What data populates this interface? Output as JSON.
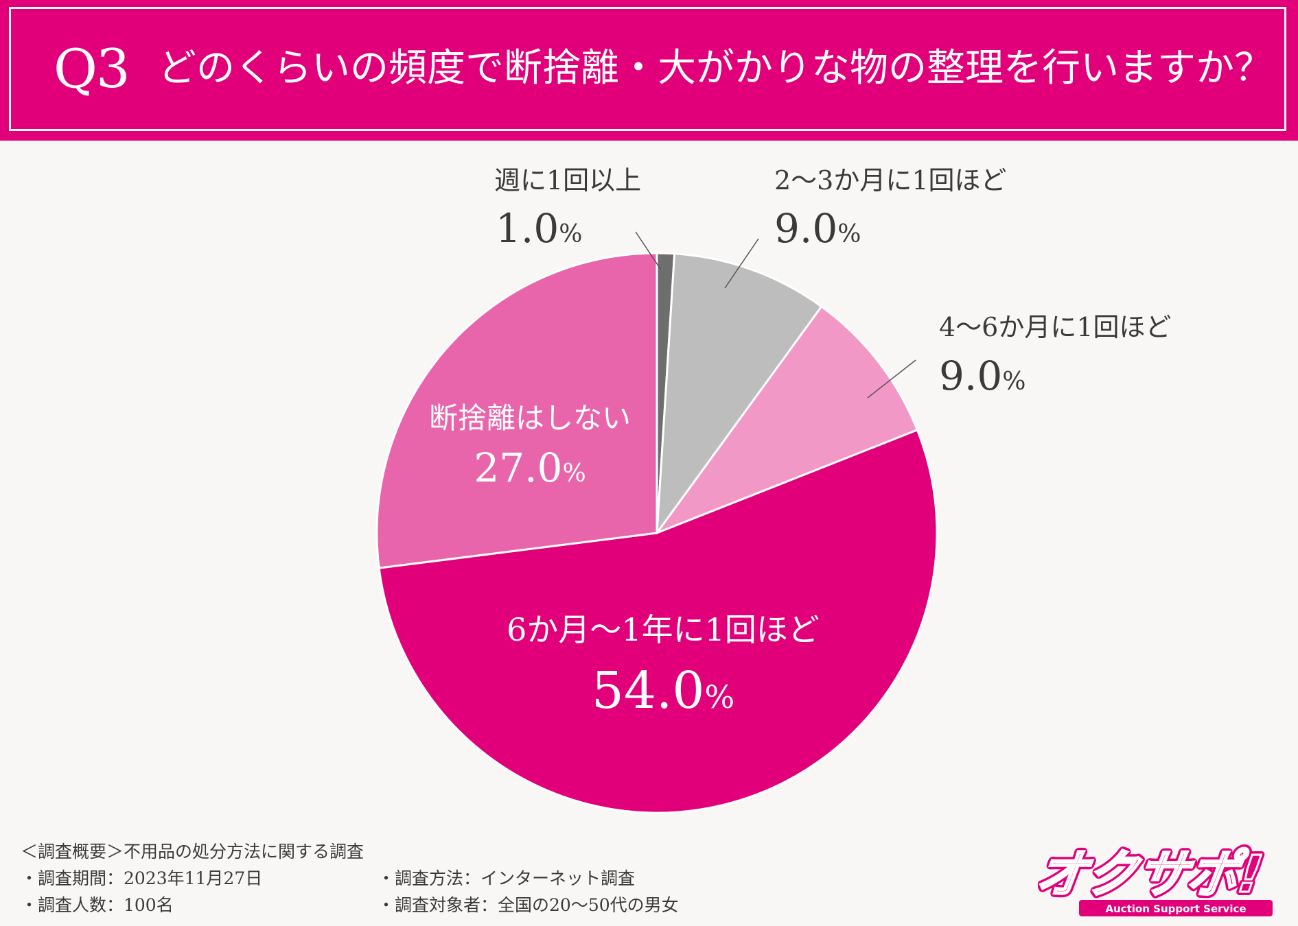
{
  "header": {
    "question_number": "Q3",
    "question_text": "どのくらいの頻度で断捨離・大がかりな物の整理を行いますか？"
  },
  "chart_data": {
    "type": "pie",
    "start_angle_deg": 0,
    "direction": "clockwise",
    "slices": [
      {
        "label": "週に1回以上",
        "value": 1.0,
        "display": "1.0",
        "color": "#6e6e6e"
      },
      {
        "label": "2〜3か月に1回ほど",
        "value": 9.0,
        "display": "9.0",
        "color": "#bdbdbd"
      },
      {
        "label": "4〜6か月に1回ほど",
        "value": 9.0,
        "display": "9.0",
        "color": "#f198c6"
      },
      {
        "label": "6か月〜1年に1回ほど",
        "value": 54.0,
        "display": "54.0",
        "color": "#e2007a"
      },
      {
        "label": "断捨離はしない",
        "value": 27.0,
        "display": "27.0",
        "color": "#e965ab"
      }
    ],
    "percent_sign": "%",
    "label_placement": [
      "outside",
      "outside",
      "outside",
      "inside",
      "inside"
    ]
  },
  "footer": {
    "title": "＜調査概要＞不用品の処分方法に関する調査",
    "period": "・調査期間：2023年11月27日",
    "method": "・調査方法：インターネット調査",
    "respondents": "・調査人数：100名",
    "target": "・調査対象者：全国の20〜50代の男女"
  },
  "logo": {
    "text": "オクサポ!",
    "subtext": "Auction Support Service",
    "color": "#e2007a"
  }
}
